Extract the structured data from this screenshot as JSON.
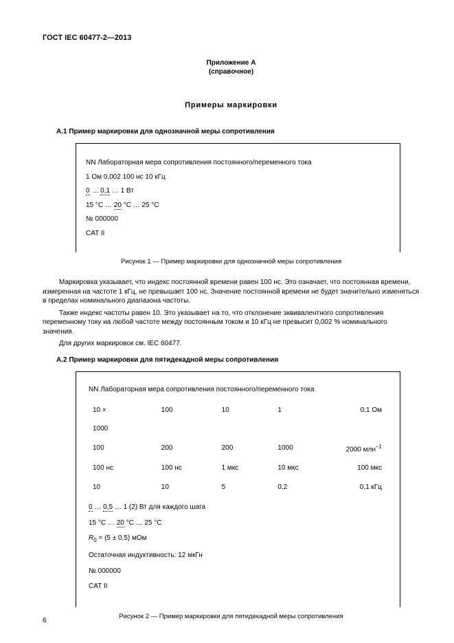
{
  "docId": "ГОСТ IEC 60477-2—2013",
  "annex": "Приложение А",
  "annexSub": "(справочное)",
  "title": "Примеры маркировки",
  "a1": {
    "heading": "А.1  Пример маркировки для однозначной меры сопротивления",
    "lines": {
      "l0": "NN  Лабораторная мера сопротивления постоянного/переменного тока",
      "l1": "1 Ом 0,002 100 нс 10 кГц",
      "l2a": "0",
      "l2b": "0,1",
      "l2c": "1 Вт",
      "l3a": "15 °С",
      "l3b": "20",
      "l3c": "°С … 25 °С",
      "l4": "№ 000000",
      "l5": "CAT II"
    },
    "figCaption": "Рисунок  1 — Пример маркировки для однозначной меры сопротивления",
    "p1": "Маркировка указывает, что индекс постоянной времени равен 100 нс. Это означает, что постоянная времени, измеренная на частоте 1 кГц, не превышает 100 нс. Значение постоянной времени не будет значительно изменяться в пределах номинального диапазона частоты.",
    "p2": "Также индекс частоты равен 10. Это указывает на то, что отклонение эквивалентного сопротивления переменному току на любой частоте между постоянным током и 10 кГц не превысит 0,002 % номинального значения.",
    "p3": "Для других маркировок см. IEC 60477."
  },
  "a2": {
    "heading": "А.2  Пример маркировки для пятидекадной меры сопротивления",
    "topLine": "NN Лабораторная мера сопротивления постоянного/переменного тока",
    "tableRows": [
      [
        "10 ×",
        "100",
        "10",
        "1",
        "0,1 Ом"
      ],
      [
        "1000",
        "",
        "",
        "",
        ""
      ],
      [
        "100",
        "200",
        "200",
        "1000",
        "2000 млн"
      ],
      [
        "100 нс",
        "100 нс",
        "1 мкс",
        "10 мкс",
        "100 мкс"
      ],
      [
        "10",
        "10",
        "5",
        "0,2",
        "0,1 кГц"
      ]
    ],
    "mlnSup": "−1",
    "lines": {
      "l1a": "0",
      "l1b": "0,5",
      "l1c": "1 (2) Вт для каждого шага",
      "l2a": "15 °С",
      "l2b": "20",
      "l2c": "°С … 25 °С",
      "l3pre": "R",
      "l3sub": "0",
      "l3post": " = (5 ± 0,5) мОм",
      "l4": "Остаточная индуктивность: 12 мкГн",
      "l5": "№ 000000",
      "l6": "CAT II"
    },
    "figCaption": "Рисунок  2 — Пример маркировки для пятидекадной меры сопротивления"
  },
  "pageNumber": "6"
}
